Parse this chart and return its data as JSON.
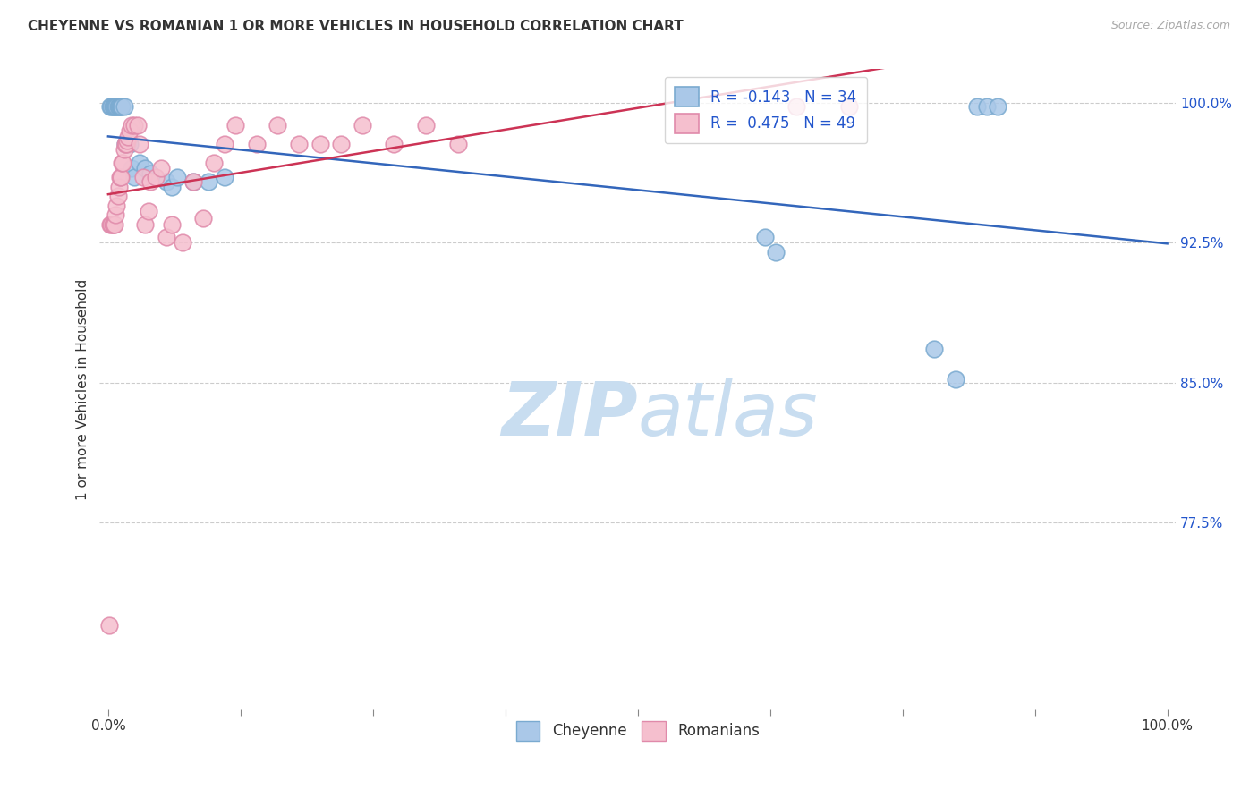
{
  "title": "CHEYENNE VS ROMANIAN 1 OR MORE VEHICLES IN HOUSEHOLD CORRELATION CHART",
  "source": "Source: ZipAtlas.com",
  "ylabel": "1 or more Vehicles in Household",
  "ymin": 0.675,
  "ymax": 1.018,
  "xmin": -0.008,
  "xmax": 1.008,
  "yticks": [
    0.775,
    0.85,
    0.925,
    1.0
  ],
  "ytick_labels": [
    "77.5%",
    "85.0%",
    "92.5%",
    "100.0%"
  ],
  "cheyenne_R": -0.143,
  "cheyenne_N": 34,
  "romanian_R": 0.475,
  "romanian_N": 49,
  "cheyenne_color": "#aac8e8",
  "cheyenne_edge": "#7aaad0",
  "romanian_color": "#f5bfce",
  "romanian_edge": "#e08aaa",
  "cheyenne_line_color": "#3366bb",
  "romanian_line_color": "#cc3355",
  "watermark_color": "#c8ddf0",
  "cheyenne_x": [
    0.002,
    0.003,
    0.004,
    0.005,
    0.006,
    0.007,
    0.008,
    0.009,
    0.01,
    0.011,
    0.012,
    0.013,
    0.015,
    0.016,
    0.018,
    0.02,
    0.022,
    0.025,
    0.03,
    0.035,
    0.04,
    0.055,
    0.06,
    0.065,
    0.08,
    0.095,
    0.11,
    0.62,
    0.63,
    0.78,
    0.8,
    0.82,
    0.83,
    0.84
  ],
  "cheyenne_y": [
    0.998,
    0.998,
    0.998,
    0.998,
    0.998,
    0.998,
    0.998,
    0.998,
    0.998,
    0.998,
    0.998,
    0.998,
    0.998,
    0.978,
    0.978,
    0.978,
    0.965,
    0.96,
    0.968,
    0.965,
    0.962,
    0.958,
    0.955,
    0.96,
    0.958,
    0.958,
    0.96,
    0.928,
    0.92,
    0.868,
    0.852,
    0.998,
    0.998,
    0.998
  ],
  "romanian_x": [
    0.001,
    0.002,
    0.003,
    0.004,
    0.005,
    0.006,
    0.007,
    0.008,
    0.009,
    0.01,
    0.011,
    0.012,
    0.013,
    0.014,
    0.015,
    0.016,
    0.017,
    0.018,
    0.019,
    0.02,
    0.022,
    0.025,
    0.028,
    0.03,
    0.033,
    0.035,
    0.038,
    0.04,
    0.045,
    0.05,
    0.055,
    0.06,
    0.07,
    0.08,
    0.09,
    0.1,
    0.11,
    0.12,
    0.14,
    0.16,
    0.18,
    0.2,
    0.22,
    0.24,
    0.27,
    0.3,
    0.33,
    0.65,
    0.7
  ],
  "romanian_y": [
    0.72,
    0.935,
    0.935,
    0.935,
    0.935,
    0.935,
    0.94,
    0.945,
    0.95,
    0.955,
    0.96,
    0.96,
    0.968,
    0.968,
    0.975,
    0.978,
    0.978,
    0.98,
    0.982,
    0.985,
    0.988,
    0.988,
    0.988,
    0.978,
    0.96,
    0.935,
    0.942,
    0.958,
    0.96,
    0.965,
    0.928,
    0.935,
    0.925,
    0.958,
    0.938,
    0.968,
    0.978,
    0.988,
    0.978,
    0.988,
    0.978,
    0.978,
    0.978,
    0.988,
    0.978,
    0.988,
    0.978,
    0.998,
    0.998
  ]
}
